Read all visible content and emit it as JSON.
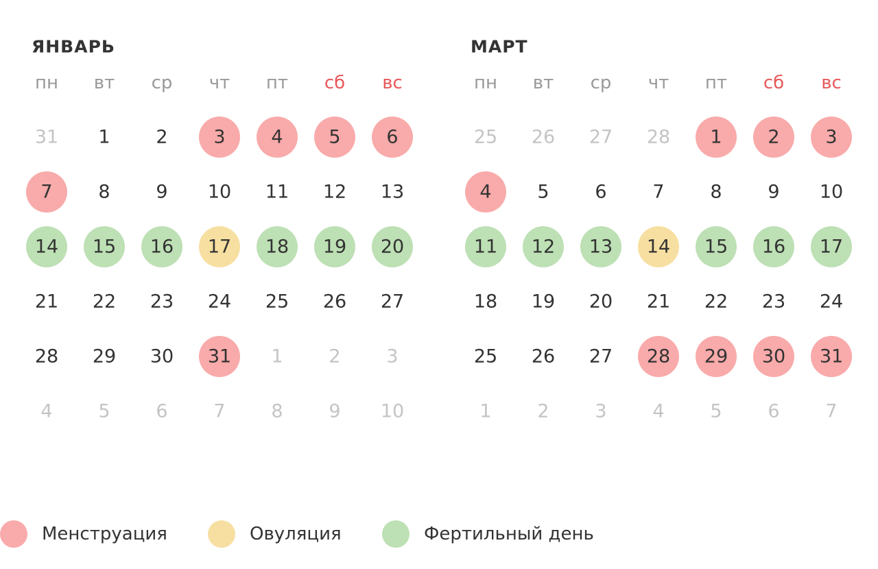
{
  "months": [
    {
      "title": "ЯНВАРЬ",
      "weekdays": [
        {
          "text": "пн",
          "color": "#999999"
        },
        {
          "text": "вт",
          "color": "#999999"
        },
        {
          "text": "ср",
          "color": "#999999"
        },
        {
          "text": "чт",
          "color": "#999999"
        },
        {
          "text": "пт",
          "color": "#999999"
        },
        {
          "text": "сб",
          "color": "#e8585a"
        },
        {
          "text": "вс",
          "color": "#e8585a"
        }
      ],
      "weeks": [
        [
          {
            "text": "31",
            "muted": true
          },
          {
            "text": "1"
          },
          {
            "text": "2"
          },
          {
            "text": "3",
            "mark": 0
          },
          {
            "text": "4",
            "mark": 0
          },
          {
            "text": "5",
            "mark": 0
          },
          {
            "text": "6",
            "mark": 0
          }
        ],
        [
          {
            "text": "7",
            "mark": 0
          },
          {
            "text": "8"
          },
          {
            "text": "9"
          },
          {
            "text": "10"
          },
          {
            "text": "11"
          },
          {
            "text": "12"
          },
          {
            "text": "13"
          }
        ],
        [
          {
            "text": "14",
            "mark": 2
          },
          {
            "text": "15",
            "mark": 2
          },
          {
            "text": "16",
            "mark": 2
          },
          {
            "text": "17",
            "mark": 1
          },
          {
            "text": "18",
            "mark": 2
          },
          {
            "text": "19",
            "mark": 2
          },
          {
            "text": "20",
            "mark": 2
          }
        ],
        [
          {
            "text": "21"
          },
          {
            "text": "22"
          },
          {
            "text": "23"
          },
          {
            "text": "24"
          },
          {
            "text": "25"
          },
          {
            "text": "26"
          },
          {
            "text": "27"
          }
        ],
        [
          {
            "text": "28"
          },
          {
            "text": "29"
          },
          {
            "text": "30"
          },
          {
            "text": "31",
            "mark": 0
          },
          {
            "text": "1",
            "muted": true
          },
          {
            "text": "2",
            "muted": true
          },
          {
            "text": "3",
            "muted": true
          }
        ],
        [
          {
            "text": "4",
            "muted": true
          },
          {
            "text": "5",
            "muted": true
          },
          {
            "text": "6",
            "muted": true
          },
          {
            "text": "7",
            "muted": true
          },
          {
            "text": "8",
            "muted": true
          },
          {
            "text": "9",
            "muted": true
          },
          {
            "text": "10",
            "muted": true
          }
        ]
      ]
    },
    {
      "title": "МАРТ",
      "weekdays": [
        {
          "text": "пн",
          "color": "#999999"
        },
        {
          "text": "вт",
          "color": "#999999"
        },
        {
          "text": "ср",
          "color": "#999999"
        },
        {
          "text": "чт",
          "color": "#999999"
        },
        {
          "text": "пт",
          "color": "#999999"
        },
        {
          "text": "сб",
          "color": "#e8585a"
        },
        {
          "text": "вс",
          "color": "#e8585a"
        }
      ],
      "weeks": [
        [
          {
            "text": "25",
            "muted": true
          },
          {
            "text": "26",
            "muted": true
          },
          {
            "text": "27",
            "muted": true
          },
          {
            "text": "28",
            "muted": true
          },
          {
            "text": "1",
            "mark": 0
          },
          {
            "text": "2",
            "mark": 0
          },
          {
            "text": "3",
            "mark": 0
          }
        ],
        [
          {
            "text": "4",
            "mark": 0
          },
          {
            "text": "5"
          },
          {
            "text": "6"
          },
          {
            "text": "7"
          },
          {
            "text": "8"
          },
          {
            "text": "9"
          },
          {
            "text": "10"
          }
        ],
        [
          {
            "text": "11",
            "mark": 2
          },
          {
            "text": "12",
            "mark": 2
          },
          {
            "text": "13",
            "mark": 2
          },
          {
            "text": "14",
            "mark": 1
          },
          {
            "text": "15",
            "mark": 2
          },
          {
            "text": "16",
            "mark": 2
          },
          {
            "text": "17",
            "mark": 2
          }
        ],
        [
          {
            "text": "18"
          },
          {
            "text": "19"
          },
          {
            "text": "20"
          },
          {
            "text": "21"
          },
          {
            "text": "22"
          },
          {
            "text": "23"
          },
          {
            "text": "24"
          }
        ],
        [
          {
            "text": "25"
          },
          {
            "text": "26"
          },
          {
            "text": "27"
          },
          {
            "text": "28",
            "mark": 0
          },
          {
            "text": "29",
            "mark": 0
          },
          {
            "text": "30",
            "mark": 0
          },
          {
            "text": "31",
            "mark": 0
          }
        ],
        [
          {
            "text": "1",
            "muted": true
          },
          {
            "text": "2",
            "muted": true
          },
          {
            "text": "3",
            "muted": true
          },
          {
            "text": "4",
            "muted": true
          },
          {
            "text": "5",
            "muted": true
          },
          {
            "text": "6",
            "muted": true
          },
          {
            "text": "7",
            "muted": true
          }
        ]
      ]
    }
  ],
  "legend": [
    {
      "label": "Менструация",
      "color": "#f9aaaa"
    },
    {
      "label": "Овуляция",
      "color": "#f7dfa1"
    },
    {
      "label": "Фертильный день",
      "color": "#bde0b4"
    }
  ]
}
